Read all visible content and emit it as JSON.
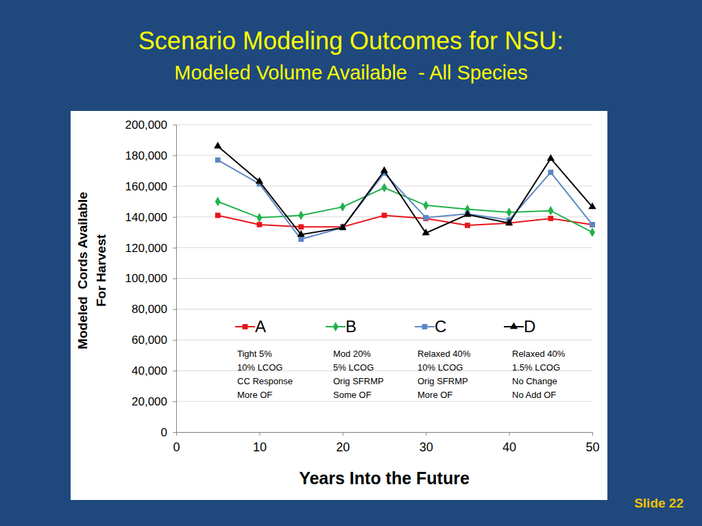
{
  "chart_data": {
    "type": "line",
    "title": "Scenario Modeling Outcomes for NSU:",
    "subtitle": "Modeled Volume Available  - All Species",
    "x_label": "Years Into the Future",
    "y_label": [
      "Modeled  Cords Available",
      "For Harvest"
    ],
    "footer": "Slide 22",
    "x": [
      5,
      10,
      15,
      20,
      25,
      30,
      35,
      40,
      45,
      50
    ],
    "xlim": [
      0,
      50
    ],
    "xticks": [
      0,
      10,
      20,
      30,
      40,
      50
    ],
    "ylim": [
      0,
      200000
    ],
    "yticks": [
      {
        "value": 0,
        "label": "0"
      },
      {
        "value": 20000,
        "label": "20,000"
      },
      {
        "value": 40000,
        "label": "40,000"
      },
      {
        "value": 60000,
        "label": "60,000"
      },
      {
        "value": 80000,
        "label": "80,000"
      },
      {
        "value": 100000,
        "label": "100,000"
      },
      {
        "value": 120000,
        "label": "120,000"
      },
      {
        "value": 140000,
        "label": "140,000"
      },
      {
        "value": 160000,
        "label": "160,000"
      },
      {
        "value": 180000,
        "label": "180,000"
      },
      {
        "value": 200000,
        "label": "200,000"
      }
    ],
    "grid": true,
    "series": [
      {
        "name": "A",
        "color": "#e8141a",
        "marker": "square",
        "annotation": [
          "Tight 5%",
          "10% LCOG",
          "CC Response",
          "More OF"
        ],
        "values": [
          141000,
          135000,
          133500,
          133500,
          141000,
          139000,
          134500,
          136000,
          139000,
          135000
        ]
      },
      {
        "name": "B",
        "color": "#1fb24a",
        "marker": "diamond",
        "annotation": [
          "Mod 20%",
          "5% LCOG",
          "Orig SFRMP",
          "Some OF"
        ],
        "values": [
          150000,
          139500,
          141000,
          146500,
          159000,
          147500,
          145000,
          143000,
          144000,
          130000
        ]
      },
      {
        "name": "C",
        "color": "#5b86c4",
        "marker": "square",
        "annotation": [
          "Relaxed 40%",
          "10% LCOG",
          "Orig SFRMP",
          "More OF"
        ],
        "values": [
          177000,
          161500,
          125500,
          133000,
          168500,
          139500,
          142000,
          138000,
          169000,
          135000
        ]
      },
      {
        "name": "D",
        "color": "#000000",
        "marker": "triangle",
        "annotation": [
          "Relaxed 40%",
          "1.5% LCOG",
          "No Change",
          "No Add OF"
        ],
        "values": [
          186000,
          163000,
          128500,
          133000,
          170000,
          129500,
          141500,
          136000,
          178000,
          146500
        ]
      }
    ]
  }
}
